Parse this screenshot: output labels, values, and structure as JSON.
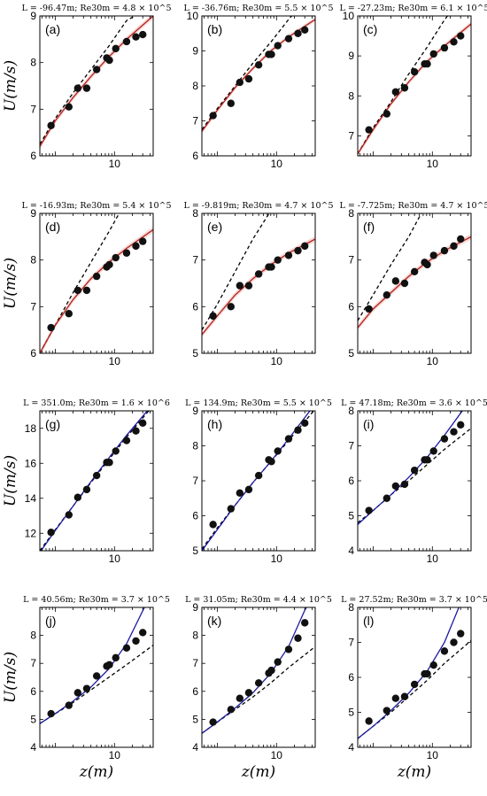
{
  "chart_data": [
    {
      "label": "(a)",
      "title": "L = -96.47m; Re30m = 4.8 × 10^5",
      "type": "scatter",
      "xscale": "log",
      "xlim": [
        0.55,
        45
      ],
      "ylim": [
        6,
        9
      ],
      "yticks": [
        6,
        7,
        8,
        9
      ],
      "fit_color": "#b2231f",
      "band": true,
      "z": [
        0.85,
        1.7,
        2.4,
        3.4,
        5,
        7.4,
        8.2,
        10.5,
        16,
        23,
        30
      ],
      "u": [
        6.65,
        7.05,
        7.45,
        7.45,
        7.85,
        8.1,
        8.05,
        8.3,
        8.45,
        8.55,
        8.6
      ],
      "fit": [
        [
          0.55,
          6.2
        ],
        [
          1,
          6.75
        ],
        [
          2,
          7.25
        ],
        [
          4,
          7.7
        ],
        [
          8,
          8.12
        ],
        [
          16,
          8.5
        ],
        [
          45,
          9.0
        ]
      ],
      "neutral": [
        [
          0.55,
          6.25
        ],
        [
          1,
          6.8
        ],
        [
          2,
          7.35
        ],
        [
          4,
          7.85
        ],
        [
          8,
          8.35
        ],
        [
          16,
          8.9
        ],
        [
          22,
          9.0
        ]
      ]
    },
    {
      "label": "(b)",
      "title": "L = -36.76m; Re30m = 5.5 × 10^5",
      "type": "scatter",
      "xscale": "log",
      "xlim": [
        0.55,
        45
      ],
      "ylim": [
        6,
        10
      ],
      "yticks": [
        6,
        7,
        8,
        9,
        10
      ],
      "fit_color": "#b2231f",
      "band": true,
      "z": [
        0.85,
        1.7,
        2.4,
        3.4,
        5,
        7.4,
        8.2,
        10.5,
        16,
        23,
        30
      ],
      "u": [
        7.15,
        7.5,
        8.1,
        8.2,
        8.6,
        8.9,
        8.9,
        9.15,
        9.35,
        9.5,
        9.6
      ],
      "fit": [
        [
          0.55,
          6.7
        ],
        [
          1,
          7.3
        ],
        [
          2,
          7.95
        ],
        [
          4,
          8.5
        ],
        [
          8,
          9.0
        ],
        [
          16,
          9.4
        ],
        [
          45,
          9.9
        ]
      ],
      "neutral": [
        [
          0.55,
          6.75
        ],
        [
          1,
          7.35
        ],
        [
          2,
          8.0
        ],
        [
          4,
          8.65
        ],
        [
          8,
          9.25
        ],
        [
          16,
          9.9
        ],
        [
          18,
          10.0
        ]
      ]
    },
    {
      "label": "(c)",
      "title": "L = -27.23m; Re30m = 6.1 × 10^5",
      "type": "scatter",
      "xscale": "log",
      "xlim": [
        0.55,
        45
      ],
      "ylim": [
        6.5,
        10
      ],
      "yticks": [
        7,
        8,
        9,
        10
      ],
      "fit_color": "#b2231f",
      "band": true,
      "z": [
        0.85,
        1.7,
        2.4,
        3.4,
        5,
        7.4,
        8.2,
        10.5,
        16,
        23,
        30
      ],
      "u": [
        7.15,
        7.55,
        8.1,
        8.2,
        8.6,
        8.8,
        8.8,
        9.05,
        9.2,
        9.35,
        9.5
      ],
      "fit": [
        [
          0.55,
          6.55
        ],
        [
          1,
          7.15
        ],
        [
          2,
          7.8
        ],
        [
          4,
          8.35
        ],
        [
          8,
          8.85
        ],
        [
          16,
          9.25
        ],
        [
          45,
          9.8
        ]
      ],
      "neutral": [
        [
          0.55,
          6.55
        ],
        [
          1,
          7.2
        ],
        [
          2,
          7.85
        ],
        [
          4,
          8.55
        ],
        [
          8,
          9.2
        ],
        [
          16,
          9.9
        ],
        [
          18,
          10.0
        ]
      ]
    },
    {
      "label": "(d)",
      "title": "L = -16.93m; Re30m = 5.4 × 10^5",
      "type": "scatter",
      "xscale": "log",
      "xlim": [
        0.55,
        45
      ],
      "ylim": [
        6,
        9
      ],
      "yticks": [
        6,
        7,
        8,
        9
      ],
      "fit_color": "#b2231f",
      "band": true,
      "z": [
        0.85,
        1.7,
        2.4,
        3.4,
        5,
        7.4,
        8.2,
        10.5,
        16,
        23,
        30
      ],
      "u": [
        6.55,
        6.85,
        7.35,
        7.35,
        7.65,
        7.85,
        7.9,
        8.05,
        8.15,
        8.3,
        8.4
      ],
      "fit": [
        [
          0.55,
          6.0
        ],
        [
          1,
          6.6
        ],
        [
          2,
          7.15
        ],
        [
          4,
          7.6
        ],
        [
          8,
          7.95
        ],
        [
          16,
          8.25
        ],
        [
          45,
          8.65
        ]
      ],
      "neutral": [
        [
          0.55,
          6.0
        ],
        [
          1,
          6.6
        ],
        [
          2,
          7.3
        ],
        [
          4,
          7.95
        ],
        [
          8,
          8.6
        ],
        [
          12,
          9.0
        ]
      ]
    },
    {
      "label": "(e)",
      "title": "L = -9.819m; Re30m = 4.7 × 10^5",
      "type": "scatter",
      "xscale": "log",
      "xlim": [
        0.55,
        45
      ],
      "ylim": [
        5,
        8
      ],
      "yticks": [
        5,
        6,
        7,
        8
      ],
      "fit_color": "#b2231f",
      "band": true,
      "z": [
        0.85,
        1.7,
        2.4,
        3.4,
        5,
        7.4,
        8.2,
        10.5,
        16,
        23,
        30
      ],
      "u": [
        5.8,
        6.0,
        6.45,
        6.45,
        6.7,
        6.85,
        6.85,
        7.0,
        7.1,
        7.2,
        7.3
      ],
      "fit": [
        [
          0.55,
          5.4
        ],
        [
          1,
          5.8
        ],
        [
          2,
          6.25
        ],
        [
          4,
          6.6
        ],
        [
          8,
          6.9
        ],
        [
          16,
          7.15
        ],
        [
          45,
          7.45
        ]
      ],
      "neutral": [
        [
          0.55,
          5.5
        ],
        [
          1,
          6.05
        ],
        [
          2,
          6.75
        ],
        [
          4,
          7.45
        ],
        [
          7.5,
          8.0
        ]
      ]
    },
    {
      "label": "(f)",
      "title": "L = -7.725m; Re30m = 4.7 × 10^5",
      "type": "scatter",
      "xscale": "log",
      "xlim": [
        0.55,
        45
      ],
      "ylim": [
        5,
        8
      ],
      "yticks": [
        5,
        6,
        7,
        8
      ],
      "fit_color": "#b2231f",
      "band": true,
      "z": [
        0.85,
        1.7,
        2.4,
        3.4,
        5,
        7.4,
        8.2,
        10.5,
        16,
        23,
        30
      ],
      "u": [
        5.95,
        6.25,
        6.55,
        6.5,
        6.75,
        6.95,
        6.9,
        7.1,
        7.2,
        7.3,
        7.45
      ],
      "fit": [
        [
          0.55,
          5.55
        ],
        [
          1,
          5.95
        ],
        [
          2,
          6.3
        ],
        [
          4,
          6.65
        ],
        [
          8,
          6.95
        ],
        [
          16,
          7.2
        ],
        [
          45,
          7.5
        ]
      ],
      "neutral": [
        [
          0.55,
          5.7
        ],
        [
          1,
          6.25
        ],
        [
          2,
          6.9
        ],
        [
          4,
          7.5
        ],
        [
          6.5,
          8.0
        ]
      ]
    },
    {
      "label": "(g)",
      "title": "L = 351.0m; Re30m = 1.6 × 10^6",
      "type": "scatter",
      "xscale": "log",
      "xlim": [
        0.55,
        45
      ],
      "ylim": [
        11,
        19
      ],
      "yticks": [
        12,
        14,
        16,
        18
      ],
      "fit_color": "#1a1aa0",
      "band": false,
      "z": [
        0.85,
        1.7,
        2.4,
        3.4,
        5,
        7.4,
        8.2,
        10.5,
        16,
        23,
        30
      ],
      "u": [
        12.05,
        13.05,
        14.05,
        14.5,
        15.3,
        16.05,
        16.05,
        16.7,
        17.3,
        17.85,
        18.3
      ],
      "fit": [
        [
          0.55,
          10.9
        ],
        [
          1,
          12.15
        ],
        [
          2,
          13.55
        ],
        [
          4,
          14.95
        ],
        [
          8,
          16.3
        ],
        [
          16,
          17.6
        ],
        [
          45,
          19.4
        ]
      ],
      "neutral": [
        [
          0.55,
          11.0
        ],
        [
          1,
          12.2
        ],
        [
          2,
          13.55
        ],
        [
          4,
          14.9
        ],
        [
          8,
          16.2
        ],
        [
          16,
          17.5
        ],
        [
          45,
          19.3
        ]
      ]
    },
    {
      "label": "(h)",
      "title": "L = 134.9m; Re30m = 5.5 × 10^5",
      "type": "scatter",
      "xscale": "log",
      "xlim": [
        0.55,
        45
      ],
      "ylim": [
        5,
        9
      ],
      "yticks": [
        5,
        6,
        7,
        8,
        9
      ],
      "fit_color": "#1a1aa0",
      "band": false,
      "z": [
        0.85,
        1.7,
        2.4,
        3.4,
        5,
        7.4,
        8.2,
        10.5,
        16,
        23,
        30
      ],
      "u": [
        5.75,
        6.2,
        6.65,
        6.75,
        7.15,
        7.6,
        7.55,
        7.85,
        8.2,
        8.45,
        8.65
      ],
      "fit": [
        [
          0.55,
          5.0
        ],
        [
          1,
          5.6
        ],
        [
          2,
          6.3
        ],
        [
          4,
          6.95
        ],
        [
          8,
          7.55
        ],
        [
          16,
          8.2
        ],
        [
          45,
          9.2
        ]
      ],
      "neutral": [
        [
          0.55,
          5.05
        ],
        [
          1,
          5.65
        ],
        [
          2,
          6.3
        ],
        [
          4,
          6.95
        ],
        [
          8,
          7.55
        ],
        [
          16,
          8.15
        ],
        [
          45,
          9.05
        ]
      ]
    },
    {
      "label": "(i)",
      "title": "L = 47.18m; Re30m = 3.6 × 10^5",
      "type": "scatter",
      "xscale": "log",
      "xlim": [
        0.55,
        45
      ],
      "ylim": [
        4,
        8
      ],
      "yticks": [
        4,
        5,
        6,
        7,
        8
      ],
      "fit_color": "#1a1aa0",
      "band": false,
      "z": [
        0.85,
        1.7,
        2.4,
        3.4,
        5,
        7.4,
        8.2,
        10.5,
        16,
        23,
        30
      ],
      "u": [
        5.15,
        5.5,
        5.85,
        5.9,
        6.3,
        6.6,
        6.6,
        6.85,
        7.2,
        7.4,
        7.6
      ],
      "fit": [
        [
          0.55,
          4.75
        ],
        [
          1,
          5.15
        ],
        [
          2,
          5.6
        ],
        [
          4,
          6.1
        ],
        [
          8,
          6.65
        ],
        [
          16,
          7.3
        ],
        [
          32,
          8.0
        ]
      ],
      "neutral": [
        [
          0.55,
          4.8
        ],
        [
          1,
          5.15
        ],
        [
          2,
          5.6
        ],
        [
          4,
          6.0
        ],
        [
          8,
          6.45
        ],
        [
          16,
          6.9
        ],
        [
          45,
          7.5
        ]
      ]
    },
    {
      "label": "(j)",
      "title": "L = 40.56m; Re30m = 3.7 × 10^5",
      "type": "scatter",
      "xscale": "log",
      "xlim": [
        0.55,
        45
      ],
      "ylim": [
        4,
        9
      ],
      "yticks": [
        4,
        5,
        6,
        7,
        8
      ],
      "fit_color": "#1a1aa0",
      "band": false,
      "z": [
        0.85,
        1.7,
        2.4,
        3.4,
        5,
        7.4,
        8.2,
        10.5,
        16,
        23,
        30
      ],
      "u": [
        5.2,
        5.5,
        5.95,
        6.1,
        6.55,
        6.9,
        6.95,
        7.2,
        7.55,
        7.8,
        8.1
      ],
      "fit": [
        [
          0.55,
          4.85
        ],
        [
          1,
          5.2
        ],
        [
          2,
          5.65
        ],
        [
          4,
          6.15
        ],
        [
          8,
          6.8
        ],
        [
          16,
          7.7
        ],
        [
          32,
          9.0
        ]
      ],
      "neutral": [
        [
          0.55,
          4.85
        ],
        [
          1,
          5.2
        ],
        [
          2,
          5.6
        ],
        [
          4,
          6.05
        ],
        [
          8,
          6.5
        ],
        [
          16,
          6.95
        ],
        [
          45,
          7.65
        ]
      ]
    },
    {
      "label": "(k)",
      "title": "L = 31.05m; Re30m = 4.4 × 10^5",
      "type": "scatter",
      "xscale": "log",
      "xlim": [
        0.55,
        45
      ],
      "ylim": [
        4,
        9
      ],
      "yticks": [
        4,
        5,
        6,
        7,
        8,
        9
      ],
      "fit_color": "#1a1aa0",
      "band": false,
      "z": [
        0.85,
        1.7,
        2.4,
        3.4,
        5,
        7.4,
        8.2,
        10.5,
        16,
        23,
        30
      ],
      "u": [
        4.9,
        5.35,
        5.75,
        5.95,
        6.3,
        6.65,
        6.75,
        7.05,
        7.5,
        7.9,
        8.45
      ],
      "fit": [
        [
          0.55,
          4.5
        ],
        [
          1,
          4.9
        ],
        [
          2,
          5.4
        ],
        [
          4,
          5.95
        ],
        [
          8,
          6.65
        ],
        [
          16,
          7.6
        ],
        [
          30,
          8.9
        ],
        [
          36,
          9.2
        ]
      ],
      "neutral": [
        [
          0.55,
          4.5
        ],
        [
          1,
          4.9
        ],
        [
          2,
          5.35
        ],
        [
          4,
          5.8
        ],
        [
          8,
          6.3
        ],
        [
          16,
          6.85
        ],
        [
          45,
          7.6
        ]
      ]
    },
    {
      "label": "(l)",
      "title": "L = 27.52m; Re30m = 3.7 × 10^5",
      "type": "scatter",
      "xscale": "log",
      "xlim": [
        0.55,
        45
      ],
      "ylim": [
        4,
        8
      ],
      "yticks": [
        4,
        5,
        6,
        7,
        8
      ],
      "fit_color": "#1a1aa0",
      "band": false,
      "z": [
        0.85,
        1.7,
        2.4,
        3.4,
        5,
        7.4,
        8.2,
        10.5,
        16,
        23,
        30
      ],
      "u": [
        4.75,
        5.05,
        5.4,
        5.45,
        5.8,
        6.1,
        6.1,
        6.35,
        6.75,
        7.0,
        7.25
      ],
      "fit": [
        [
          0.55,
          4.25
        ],
        [
          1,
          4.6
        ],
        [
          2,
          5.05
        ],
        [
          4,
          5.55
        ],
        [
          8,
          6.15
        ],
        [
          16,
          7.0
        ],
        [
          28,
          8.0
        ]
      ],
      "neutral": [
        [
          0.55,
          4.25
        ],
        [
          1,
          4.6
        ],
        [
          2,
          5.0
        ],
        [
          4,
          5.45
        ],
        [
          8,
          5.9
        ],
        [
          16,
          6.4
        ],
        [
          45,
          7.05
        ]
      ]
    }
  ],
  "axes": {
    "ylabel": "U(m/s)",
    "xlabel": "z(m)",
    "xtick": "10"
  }
}
